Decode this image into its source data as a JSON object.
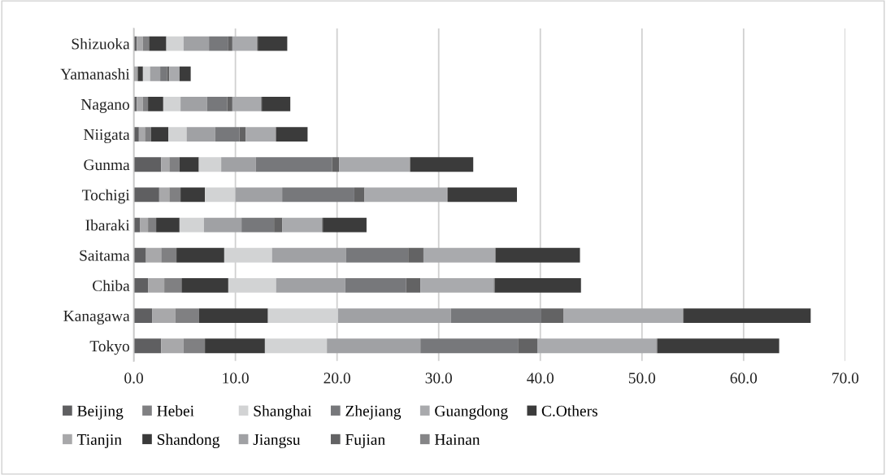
{
  "chart_data": {
    "type": "bar",
    "orientation": "horizontal",
    "stacked": true,
    "categories": [
      "Shizuoka",
      "Yamanashi",
      "Nagano",
      "Niigata",
      "Gunma",
      "Tochigi",
      "Ibaraki",
      "Saitama",
      "Chiba",
      "Kanagawa",
      "Tokyo"
    ],
    "series": [
      {
        "name": "Beijing",
        "color": "#5f5f61",
        "values": [
          0.3,
          0.1,
          0.3,
          0.5,
          2.7,
          2.5,
          0.6,
          1.2,
          1.4,
          1.8,
          2.7
        ]
      },
      {
        "name": "Tianjin",
        "color": "#a8a8aa",
        "values": [
          0.6,
          0.2,
          0.6,
          0.6,
          0.8,
          1.0,
          0.8,
          1.5,
          1.6,
          2.3,
          2.2
        ]
      },
      {
        "name": "Hebei",
        "color": "#808082",
        "values": [
          0.6,
          0.1,
          0.5,
          0.6,
          1.0,
          1.1,
          0.8,
          1.5,
          1.7,
          2.3,
          2.1
        ]
      },
      {
        "name": "Shandong",
        "color": "#3a3a3a",
        "values": [
          1.7,
          0.5,
          1.5,
          1.7,
          1.9,
          2.4,
          2.3,
          4.7,
          4.6,
          6.8,
          5.9
        ]
      },
      {
        "name": "Shanghai",
        "color": "#d2d3d4",
        "values": [
          1.7,
          0.7,
          1.7,
          1.8,
          2.2,
          3.0,
          2.4,
          4.7,
          4.7,
          6.9,
          6.1
        ]
      },
      {
        "name": "Jiangsu",
        "color": "#a0a1a4",
        "values": [
          2.5,
          1.0,
          2.6,
          2.8,
          3.4,
          4.6,
          3.7,
          7.3,
          6.8,
          11.1,
          9.2
        ]
      },
      {
        "name": "Zhejiang",
        "color": "#77787b",
        "values": [
          1.9,
          0.7,
          2.0,
          2.4,
          7.5,
          7.1,
          3.2,
          6.1,
          6.0,
          8.9,
          9.6
        ]
      },
      {
        "name": "Fujian",
        "color": "#636364",
        "values": [
          0.4,
          0.2,
          0.5,
          0.6,
          0.7,
          1.0,
          0.8,
          1.5,
          1.4,
          2.2,
          1.9
        ]
      },
      {
        "name": "Guangdong",
        "color": "#a9aaad",
        "values": [
          2.4,
          1.0,
          2.8,
          2.9,
          6.9,
          8.1,
          3.9,
          7.0,
          7.2,
          11.7,
          11.7
        ]
      },
      {
        "name": "Hainan",
        "color": "#858587",
        "values": [
          0.1,
          0.0,
          0.1,
          0.1,
          0.1,
          0.1,
          0.1,
          0.1,
          0.1,
          0.1,
          0.1
        ]
      },
      {
        "name": "C.Others",
        "color": "#3b3b3b",
        "values": [
          2.9,
          1.1,
          2.8,
          3.1,
          6.2,
          6.8,
          4.3,
          8.3,
          8.5,
          12.5,
          12.0
        ]
      }
    ],
    "xlim": [
      0,
      70
    ],
    "xticks": [
      {
        "value": 0,
        "label": "0.0"
      },
      {
        "value": 10,
        "label": "10.0"
      },
      {
        "value": 20,
        "label": "20.0"
      },
      {
        "value": 30,
        "label": "30.0"
      },
      {
        "value": 40,
        "label": "40.0"
      },
      {
        "value": 50,
        "label": "50.0"
      },
      {
        "value": 60,
        "label": "60.0"
      },
      {
        "value": 70,
        "label": "70.0"
      }
    ],
    "grid": "x",
    "legend": "bottom"
  }
}
